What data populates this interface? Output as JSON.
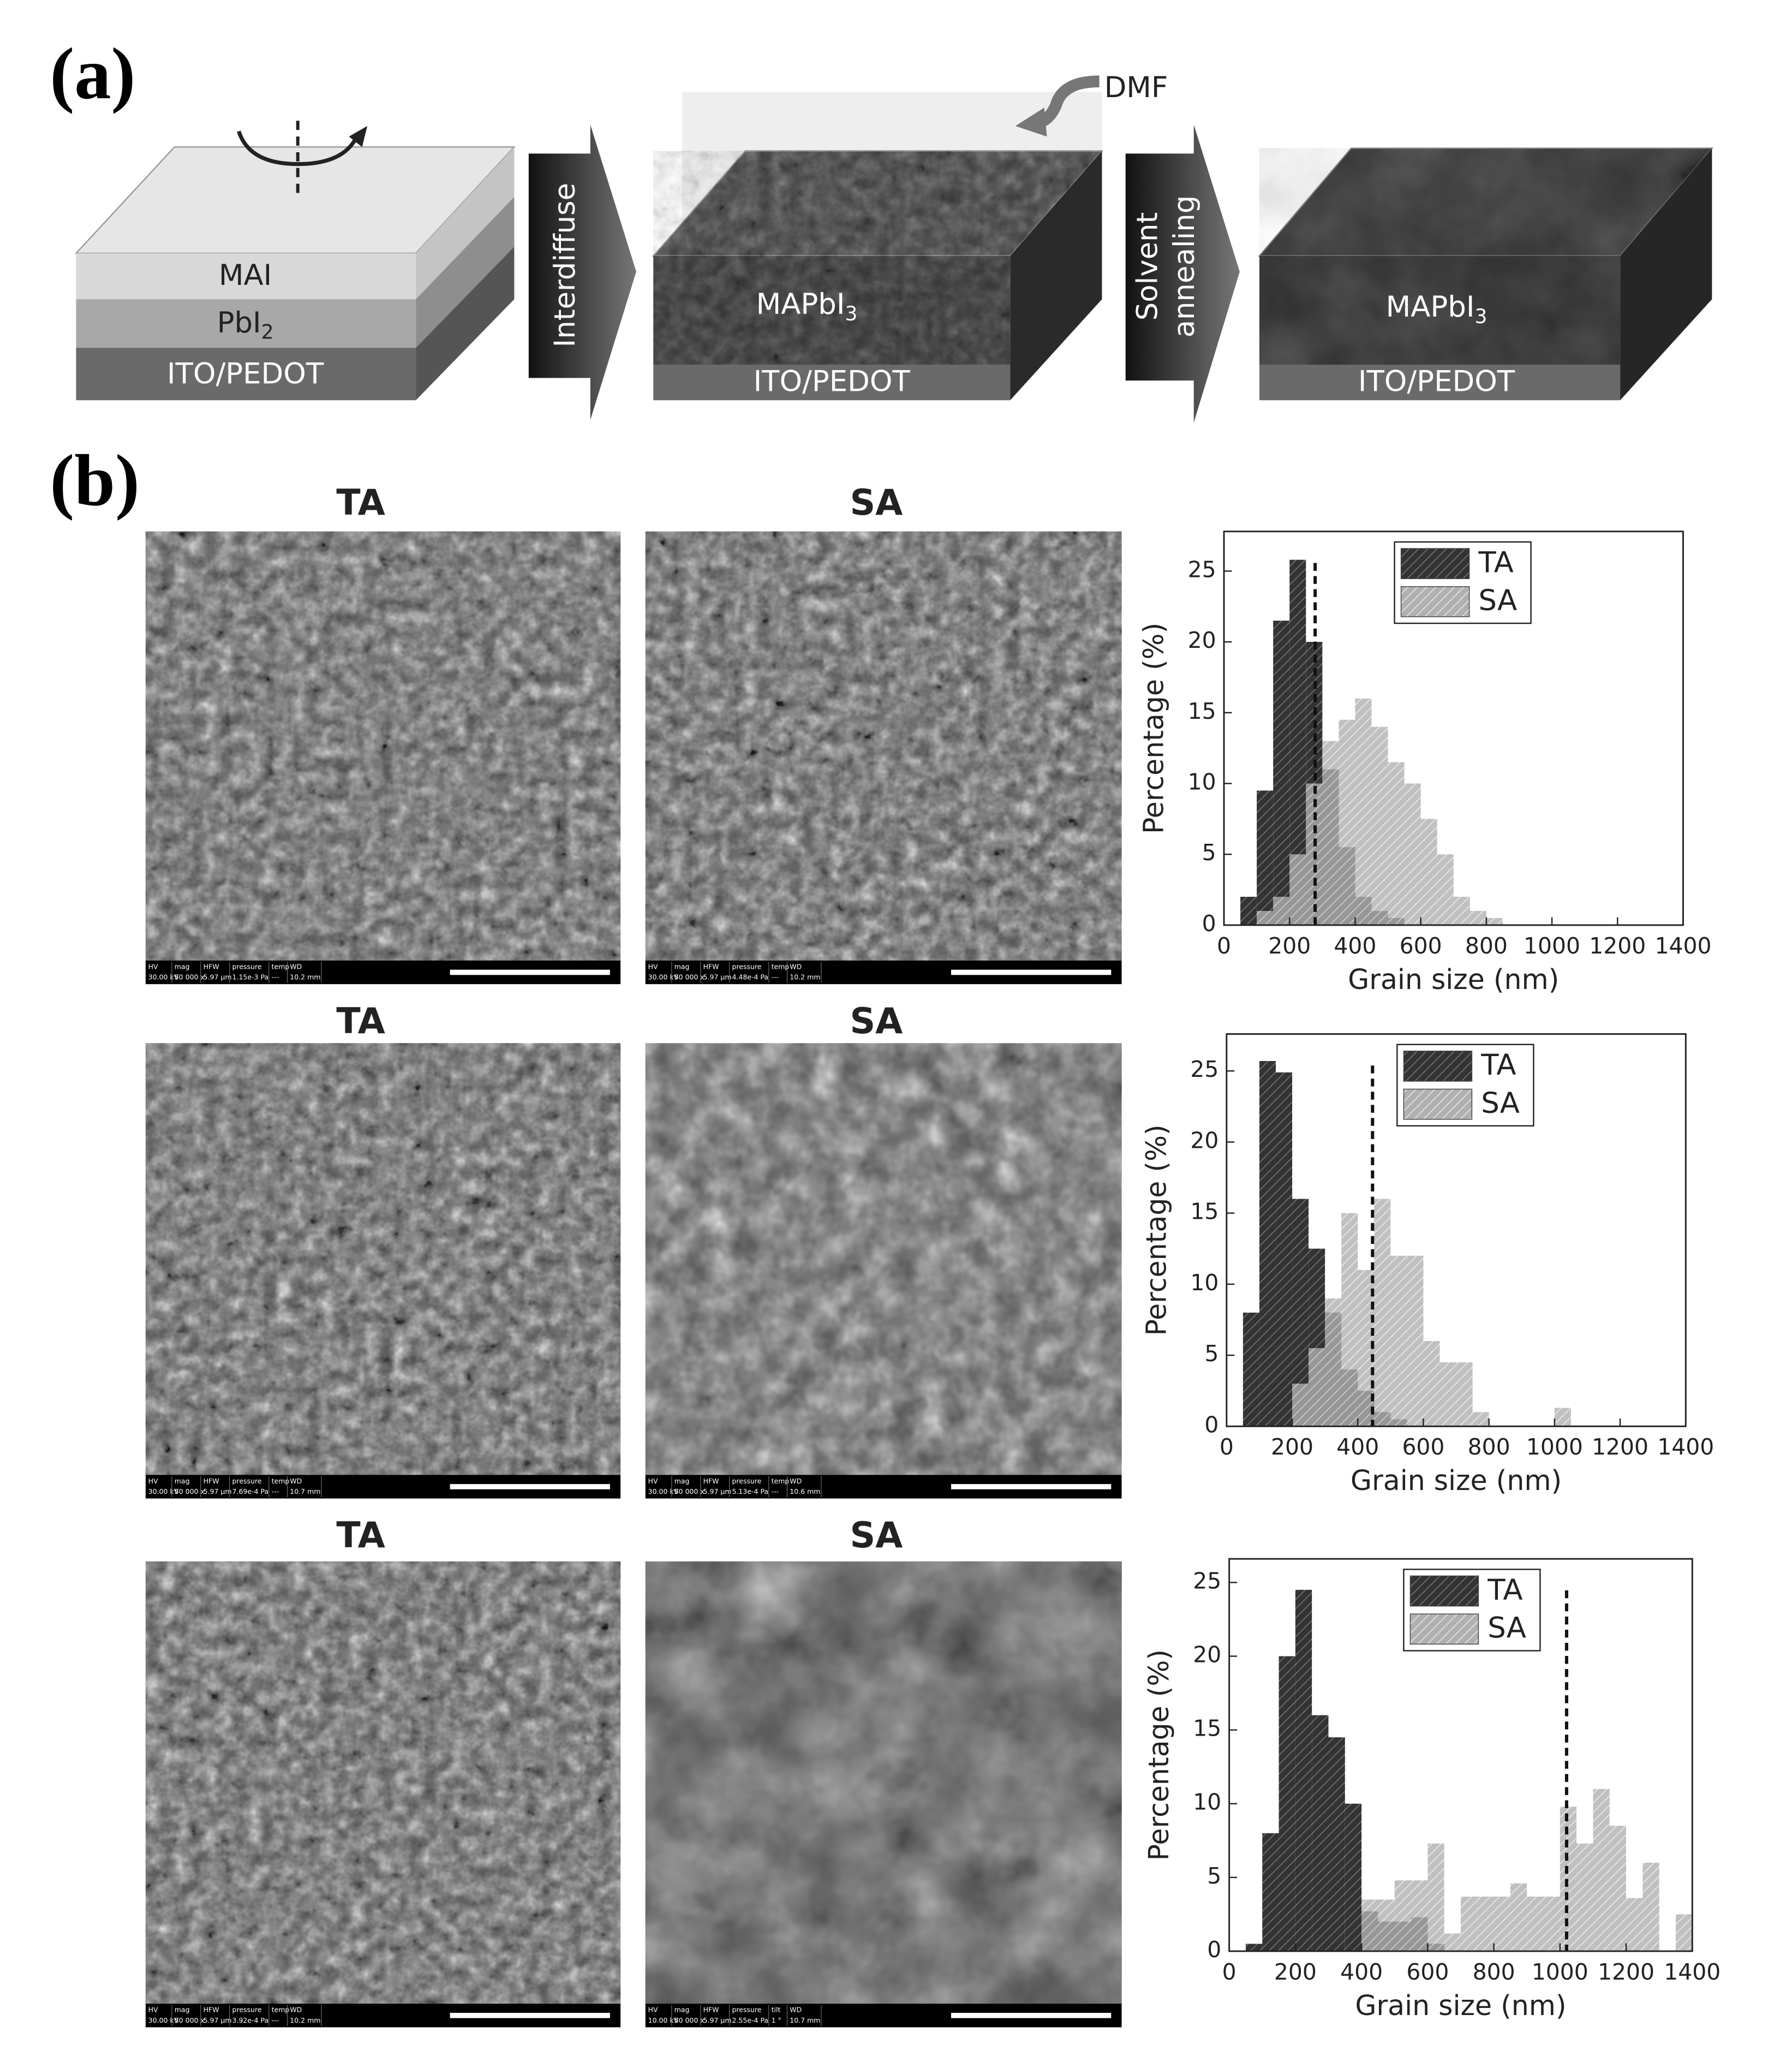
{
  "figure": {
    "panel_a": {
      "label": "(a)",
      "mai": "MAI",
      "pbi2": {
        "main": "PbI",
        "sub": "2"
      },
      "substrate": "ITO/PEDOT",
      "arrow1": "Interdiffuse",
      "solvent": "DMF",
      "film": {
        "main": "MAPbI",
        "sub": "3"
      },
      "arrow2": [
        "Solvent",
        "annealing"
      ]
    },
    "panel_b": {
      "label": "(b)",
      "rows": [
        {
          "left": {
            "title": "TA",
            "info": [
              [
                "HV",
                "30.00 kV"
              ],
              [
                "mag",
                "50 000 x"
              ],
              [
                "HFW",
                "5.97 µm"
              ],
              [
                "pressure",
                "1.15e-3 Pa"
              ],
              [
                "temp",
                "---"
              ],
              [
                "WD",
                "10.2 mm"
              ]
            ]
          },
          "right": {
            "title": "SA",
            "info": [
              [
                "HV",
                "30.00 kV"
              ],
              [
                "mag",
                "50 000 x"
              ],
              [
                "HFW",
                "5.97 µm"
              ],
              [
                "pressure",
                "4.48e-4 Pa"
              ],
              [
                "temp",
                "---"
              ],
              [
                "WD",
                "10.2 mm"
              ]
            ]
          }
        },
        {
          "left": {
            "title": "TA",
            "info": [
              [
                "HV",
                "30.00 kV"
              ],
              [
                "mag",
                "50 000 x"
              ],
              [
                "HFW",
                "5.97 µm"
              ],
              [
                "pressure",
                "7.69e-4 Pa"
              ],
              [
                "temp",
                "---"
              ],
              [
                "WD",
                "10.7 mm"
              ]
            ]
          },
          "right": {
            "title": "SA",
            "info": [
              [
                "HV",
                "30.00 kV"
              ],
              [
                "mag",
                "50 000 x"
              ],
              [
                "HFW",
                "5.97 µm"
              ],
              [
                "pressure",
                "5.13e-4 Pa"
              ],
              [
                "temp",
                "---"
              ],
              [
                "WD",
                "10.6 mm"
              ]
            ]
          }
        },
        {
          "left": {
            "title": "TA",
            "info": [
              [
                "HV",
                "30.00 kV"
              ],
              [
                "mag",
                "50 000 x"
              ],
              [
                "HFW",
                "5.97 µm"
              ],
              [
                "pressure",
                "3.92e-4 Pa"
              ],
              [
                "temp",
                "---"
              ],
              [
                "WD",
                "10.2 mm"
              ]
            ]
          },
          "right": {
            "title": "SA",
            "info": [
              [
                "HV",
                "10.00 kV"
              ],
              [
                "mag",
                "50 000 x"
              ],
              [
                "HFW",
                "5.97 µm"
              ],
              [
                "pressure",
                "2.55e-4 Pa"
              ],
              [
                "tilt",
                "1 °"
              ],
              [
                "WD",
                "10.7 mm"
              ]
            ]
          }
        }
      ]
    }
  },
  "chart_data": [
    {
      "type": "histogram",
      "xlabel": "Grain size (nm)",
      "ylabel": "Percentage (%)",
      "bins": [
        50,
        100,
        150,
        200,
        250,
        300,
        350,
        400,
        450,
        500,
        550,
        600,
        650,
        700,
        750,
        800,
        850
      ],
      "series": [
        {
          "name": "TA",
          "color": "#333333",
          "values": [
            2,
            9.5,
            21.5,
            25.8,
            20,
            11,
            5.5,
            2,
            1,
            0.5,
            0,
            0,
            0,
            0,
            0,
            0
          ]
        },
        {
          "name": "SA",
          "color": "#b0b0b0",
          "values": [
            0,
            1,
            2,
            5,
            10,
            13,
            14.5,
            16,
            14,
            11.5,
            10,
            7.5,
            5,
            2,
            1,
            0.5
          ]
        }
      ],
      "xlim": [
        0,
        1400
      ],
      "ylim": [
        0,
        27.8
      ],
      "xticks": [
        0,
        200,
        400,
        600,
        800,
        1000,
        1200,
        1400
      ],
      "yticks": [
        0,
        5,
        10,
        15,
        20,
        25
      ],
      "dashed_line_x": 278,
      "legend": "upper-right"
    },
    {
      "type": "histogram",
      "xlabel": "Grain size (nm)",
      "ylabel": "Percentage (%)",
      "bins": [
        50,
        100,
        150,
        200,
        250,
        300,
        350,
        400,
        450,
        500,
        550,
        600,
        650,
        700,
        750,
        800,
        850,
        900,
        950,
        1000,
        1050
      ],
      "series": [
        {
          "name": "TA",
          "color": "#333333",
          "values": [
            8,
            25.7,
            24.9,
            16,
            12.5,
            8,
            4,
            2.5,
            1,
            0.5,
            0,
            0,
            0,
            0,
            0,
            0,
            0,
            0,
            0,
            0
          ]
        },
        {
          "name": "SA",
          "color": "#b0b0b0",
          "values": [
            0,
            0,
            0,
            3,
            5.5,
            9,
            15,
            11,
            16,
            12,
            12,
            6,
            4.5,
            4.5,
            1,
            0,
            0,
            0,
            0,
            1.3
          ]
        }
      ],
      "xlim": [
        0,
        1400
      ],
      "ylim": [
        0,
        27.6
      ],
      "xticks": [
        0,
        200,
        400,
        600,
        800,
        1000,
        1200,
        1400
      ],
      "yticks": [
        0,
        5,
        10,
        15,
        20,
        25
      ],
      "dashed_line_x": 445,
      "legend": "upper-right"
    },
    {
      "type": "histogram",
      "xlabel": "Grain size (nm)",
      "ylabel": "Percentage (%)",
      "bins": [
        50,
        100,
        150,
        200,
        250,
        300,
        350,
        400,
        450,
        500,
        550,
        600,
        650,
        700,
        750,
        800,
        850,
        900,
        950,
        1000,
        1050,
        1100,
        1150,
        1200,
        1250,
        1300,
        1350,
        1400
      ],
      "series": [
        {
          "name": "TA",
          "color": "#333333",
          "values": [
            0.5,
            8,
            20,
            24.5,
            16,
            14.5,
            10,
            2.7,
            2,
            2,
            2.3,
            0.5,
            0,
            0,
            0,
            0,
            0,
            0,
            0,
            0,
            0,
            0,
            0,
            0,
            0,
            0,
            0
          ]
        },
        {
          "name": "SA",
          "color": "#b0b0b0",
          "values": [
            0,
            0,
            0,
            0,
            0,
            0,
            0,
            3.5,
            3.5,
            4.8,
            4.8,
            7.3,
            1.2,
            3.7,
            3.7,
            3.7,
            4.6,
            3.7,
            3.7,
            9.8,
            7.3,
            11,
            8.5,
            3.6,
            6,
            0,
            2.5
          ]
        }
      ],
      "xlim": [
        0,
        1400
      ],
      "ylim": [
        0,
        26.6
      ],
      "xticks": [
        0,
        200,
        400,
        600,
        800,
        1000,
        1200,
        1400
      ],
      "yticks": [
        0,
        5,
        10,
        15,
        20,
        25
      ],
      "dashed_line_x": 1020,
      "legend": "upper-right"
    }
  ]
}
